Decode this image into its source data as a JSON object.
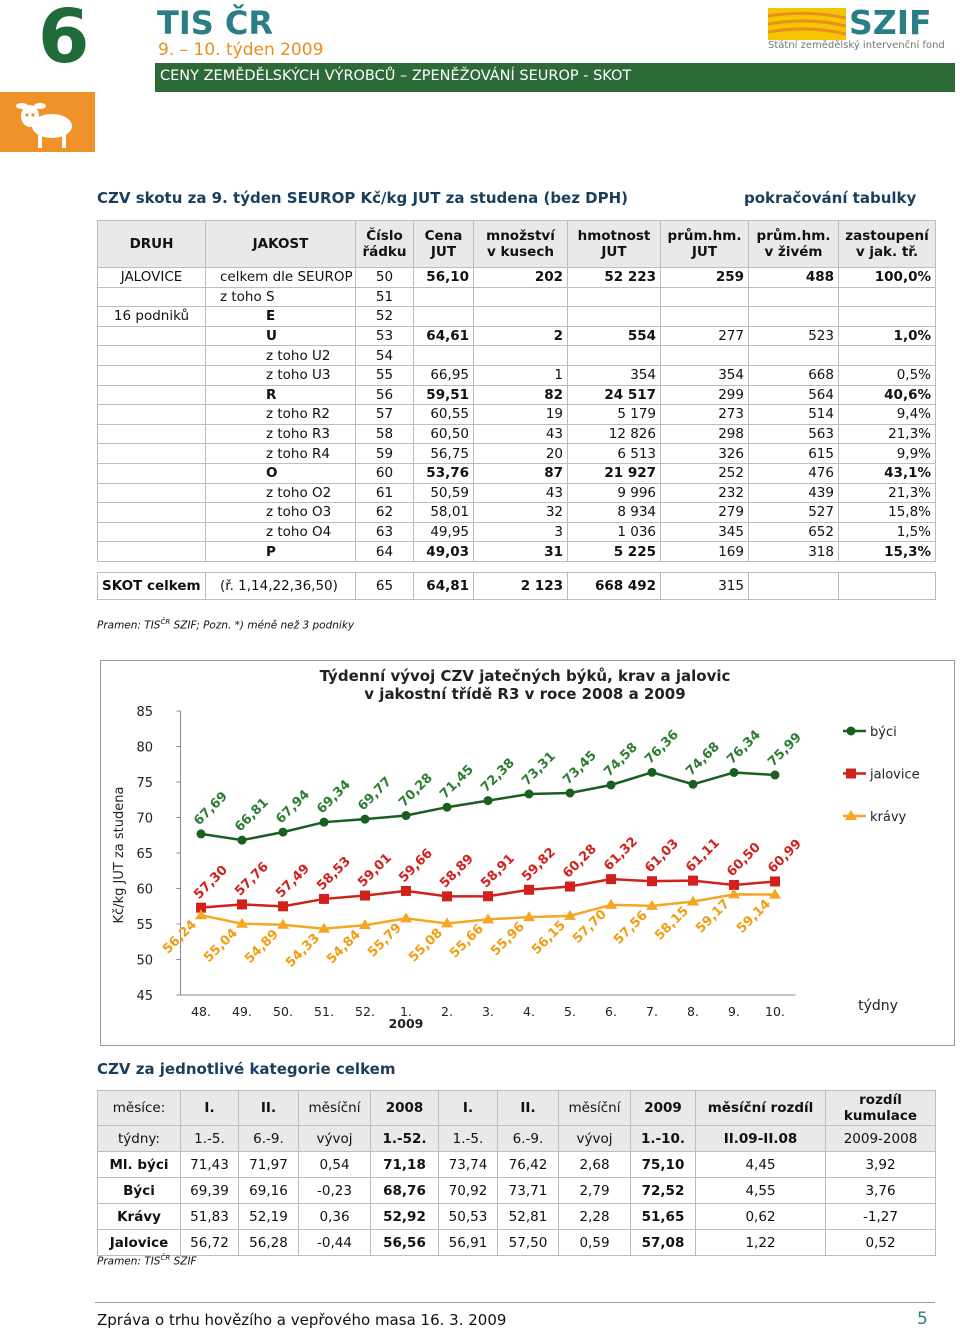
{
  "header": {
    "issue": "6",
    "brand": "TIS ČR",
    "week": "9. – 10. týden 2009",
    "subtitle": "CENY ZEMĚDĚLSKÝCH VÝROBCŮ – ZPENĚŽOVÁNÍ SEUROP - SKOT",
    "logo": "SZIF",
    "logo_caption": "Státní zemědělský intervenční fond"
  },
  "section1": {
    "title": "CZV skotu za  9. týden  SEUROP  Kč/kg  JUT za  studena   (bez DPH)",
    "note": "pokračování tabulky"
  },
  "table1": {
    "columns": [
      "DRUH",
      "JAKOST",
      "Číslo\nřádku",
      "Cena\nJUT",
      "množství\nv kusech",
      "hmotnost\nJUT",
      "prům.hm.\nJUT",
      "prům.hm.\nv živém",
      "zastoupení\nv jak. tř."
    ],
    "rows": [
      [
        "JALOVICE",
        "celkem dle SEUROP",
        "50",
        "56,10",
        "202",
        "52 223",
        "259",
        "488",
        "100,0%"
      ],
      [
        null,
        "z toho S",
        "51",
        null,
        null,
        null,
        null,
        null,
        null
      ],
      [
        "16 podniků",
        "E",
        "52",
        null,
        null,
        null,
        null,
        null,
        null
      ],
      [
        null,
        "U",
        "53",
        "64,61",
        "2",
        "554",
        "277",
        "523",
        "1,0%"
      ],
      [
        null,
        "z toho U2",
        "54",
        null,
        null,
        null,
        null,
        null,
        null
      ],
      [
        null,
        "z toho U3",
        "55",
        "66,95",
        "1",
        "354",
        "354",
        "668",
        "0,5%"
      ],
      [
        null,
        "R",
        "56",
        "59,51",
        "82",
        "24 517",
        "299",
        "564",
        "40,6%"
      ],
      [
        null,
        "z toho R2",
        "57",
        "60,55",
        "19",
        "5 179",
        "273",
        "514",
        "9,4%"
      ],
      [
        null,
        "z toho R3",
        "58",
        "60,50",
        "43",
        "12 826",
        "298",
        "563",
        "21,3%"
      ],
      [
        null,
        "z toho R4",
        "59",
        "56,75",
        "20",
        "6 513",
        "326",
        "615",
        "9,9%"
      ],
      [
        null,
        "O",
        "60",
        "53,76",
        "87",
        "21 927",
        "252",
        "476",
        "43,1%"
      ],
      [
        null,
        "z toho O2",
        "61",
        "50,59",
        "43",
        "9 996",
        "232",
        "439",
        "21,3%"
      ],
      [
        null,
        "z toho O3",
        "62",
        "58,01",
        "32",
        "8 934",
        "279",
        "527",
        "15,8%"
      ],
      [
        null,
        "z toho O4",
        "63",
        "49,95",
        "3",
        "1 036",
        "345",
        "652",
        "1,5%"
      ],
      [
        null,
        "P",
        "64",
        "49,03",
        "31",
        "5 225",
        "169",
        "318",
        "15,3%"
      ]
    ],
    "total": [
      "SKOT celkem",
      "(ř. 1,14,22,36,50)",
      "65",
      "64,81",
      "2 123",
      "668 492",
      "315",
      null,
      null
    ]
  },
  "source1": {
    "text": "Pramen: TIS",
    "sup": "ČR",
    "rest": "SZIF; Pozn. *) méně než 3 podniky"
  },
  "chart_data": {
    "type": "line",
    "title": [
      "Týdenní vývoj CZV jatečných býků, krav a jalovic",
      "v jakostní třídě R3   v roce 2008 a 2009"
    ],
    "y_label": "Kč/kg JUT za studena",
    "x_label": "týdny",
    "categories": [
      "48.",
      "49.",
      "50.",
      "51.",
      "52.",
      "1.",
      "2.",
      "3.",
      "4.",
      "5.",
      "6.",
      "7.",
      "8.",
      "9.",
      "10."
    ],
    "annotations": [
      {
        "text": "2009",
        "category": "1."
      }
    ],
    "ylim": [
      45,
      85
    ],
    "yticks": [
      45,
      50,
      55,
      60,
      65,
      70,
      75,
      80,
      85
    ],
    "legend": "right",
    "series": [
      {
        "name": "býci",
        "color": "#1b5e20",
        "label_color": "#2e7d32",
        "marker": "circle",
        "values": [
          67.69,
          66.81,
          67.94,
          69.34,
          69.77,
          70.28,
          71.45,
          72.38,
          73.31,
          73.45,
          74.58,
          76.36,
          74.68,
          76.34,
          75.99
        ],
        "value_labels": [
          "67,69",
          "66,81",
          "67,94",
          "69,34",
          "69,77",
          "70,28",
          "71,45",
          "72,38",
          "73,31",
          "73,45",
          "74,58",
          "76,36",
          "74,68",
          "76,34",
          "75,99"
        ]
      },
      {
        "name": "jalovice",
        "color": "#d0211c",
        "label_color": "#d0211c",
        "marker": "square",
        "values": [
          57.3,
          57.76,
          57.49,
          58.53,
          59.01,
          59.66,
          58.89,
          58.91,
          59.82,
          60.28,
          61.32,
          61.03,
          61.11,
          60.5,
          60.99
        ],
        "value_labels": [
          "57,30",
          "57,76",
          "57,49",
          "58,53",
          "59,01",
          "59,66",
          "58,89",
          "58,91",
          "59,82",
          "60,28",
          "61,32",
          "61,03",
          "61,11",
          "60,50",
          "60,99"
        ]
      },
      {
        "name": "krávy",
        "color": "#f5a623",
        "label_color": "#f39c12",
        "marker": "triangle",
        "values": [
          56.24,
          55.04,
          54.89,
          54.33,
          54.84,
          55.79,
          55.08,
          55.66,
          55.96,
          56.15,
          57.7,
          57.56,
          58.15,
          59.17,
          59.14
        ],
        "value_labels": [
          "56,24",
          "55,04",
          "54,89",
          "54,33",
          "54,84",
          "55,79",
          "55,08",
          "55,66",
          "55,96",
          "56,15",
          "57,70",
          "57,56",
          "58,15",
          "59,17",
          "59,14"
        ]
      }
    ]
  },
  "section2": {
    "title": "CZV za jednotlivé kategorie celkem"
  },
  "table2": {
    "header": [
      [
        "měsíce:",
        "I.",
        "II.",
        "měsíční",
        "2008",
        "I.",
        "II.",
        "měsíční",
        "2009",
        "měsíční rozdíl",
        "rozdíl\nkumulace"
      ],
      [
        "týdny:",
        "1.-5.",
        "6.-9.",
        "vývoj",
        "1.-52.",
        "1.-5.",
        "6.-9.",
        "vývoj",
        "1.-10.",
        "II.09-II.08",
        "2009-2008"
      ]
    ],
    "rows": [
      [
        "Ml. býci",
        "71,43",
        "71,97",
        "0,54",
        "71,18",
        "73,74",
        "76,42",
        "2,68",
        "75,10",
        "4,45",
        "3,92"
      ],
      [
        "Býci",
        "69,39",
        "69,16",
        "-0,23",
        "68,76",
        "70,92",
        "73,71",
        "2,79",
        "72,52",
        "4,55",
        "3,76"
      ],
      [
        "Krávy",
        "51,83",
        "52,19",
        "0,36",
        "52,92",
        "50,53",
        "52,81",
        "2,28",
        "51,65",
        "0,62",
        "-1,27"
      ],
      [
        "Jalovice",
        "56,72",
        "56,28",
        "-0,44",
        "56,56",
        "56,91",
        "57,50",
        "0,59",
        "57,08",
        "1,22",
        "0,52"
      ]
    ]
  },
  "source2": {
    "text": "Pramen: TIS",
    "sup": "ČR",
    "rest": "SZIF"
  },
  "footer": {
    "text": "Zpráva o trhu hovězího a vepřového masa 16. 3. 2009",
    "page": "5"
  }
}
